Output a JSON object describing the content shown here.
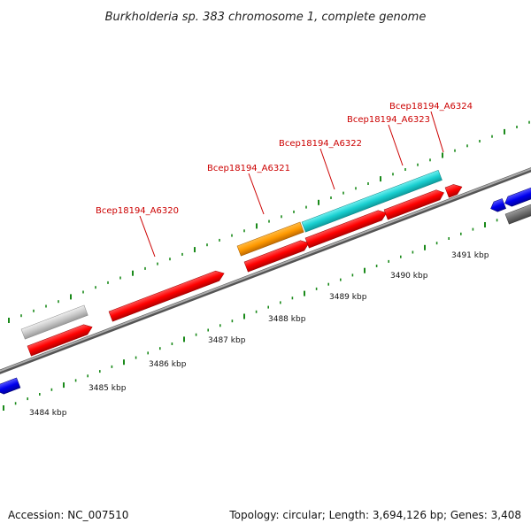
{
  "title": "Burkholderia sp. 383 chromosome 1, complete genome",
  "footer": {
    "accession": "Accession: NC_007510",
    "summary": "Topology: circular; Length: 3,694,126 bp; Genes: 3,408"
  },
  "colors": {
    "forward_gene": "#ff0000",
    "highlight_a": "#ff9900",
    "highlight_b": "#19cfd0",
    "neighbor": "#0000ee",
    "pseudo": "#c8c8c8",
    "other": "#6e6e6e",
    "axis": "#888888",
    "tick": "#1a8a1a",
    "label": "#cc0000"
  },
  "scale": {
    "unit": "kbp",
    "ticks": [
      {
        "value": 3484,
        "label": "3484 kbp"
      },
      {
        "value": 3485,
        "label": "3485 kbp"
      },
      {
        "value": 3486,
        "label": "3486 kbp"
      },
      {
        "value": 3487,
        "label": "3487 kbp"
      },
      {
        "value": 3488,
        "label": "3488 kbp"
      },
      {
        "value": 3489,
        "label": "3489 kbp"
      },
      {
        "value": 3490,
        "label": "3490 kbp"
      },
      {
        "value": 3491,
        "label": "3491 kbp"
      }
    ]
  },
  "genes": [
    {
      "name": "Bcep18194_A6320"
    },
    {
      "name": "Bcep18194_A6321"
    },
    {
      "name": "Bcep18194_A6322"
    },
    {
      "name": "Bcep18194_A6323"
    },
    {
      "name": "Bcep18194_A6324"
    }
  ]
}
